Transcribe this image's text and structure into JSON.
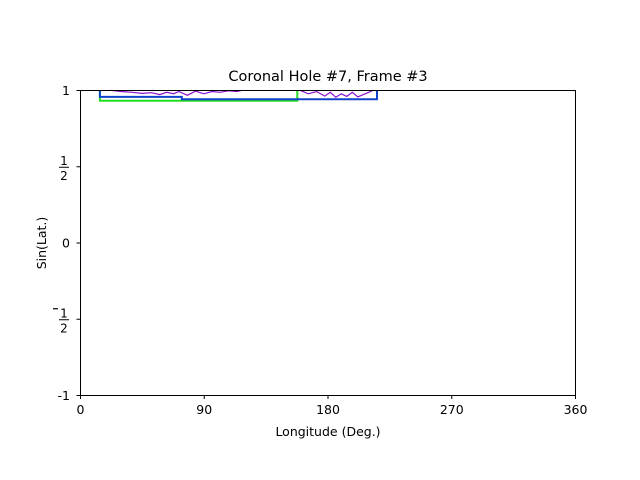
{
  "chart_data": {
    "type": "line",
    "title": "Coronal Hole #7, Frame #3",
    "xlabel": "Longitude (Deg.)",
    "ylabel": "Sin(Lat.)",
    "xlim": [
      0,
      360
    ],
    "ylim": [
      -1,
      1
    ],
    "grid": false,
    "x_ticks": [
      {
        "value": 0,
        "label": "0"
      },
      {
        "value": 90,
        "label": "90"
      },
      {
        "value": 180,
        "label": "180"
      },
      {
        "value": 270,
        "label": "270"
      },
      {
        "value": 360,
        "label": "360"
      }
    ],
    "y_ticks": [
      {
        "value": -1,
        "label": "-1"
      },
      {
        "value": -0.5,
        "label": "",
        "num": "1",
        "den": "2",
        "minus": true
      },
      {
        "value": 0,
        "label": "0"
      },
      {
        "value": 0.5,
        "label": "",
        "num": "1",
        "den": "2",
        "minus": false
      },
      {
        "value": 1,
        "label": "1"
      }
    ],
    "series": [
      {
        "color": "#22dd22",
        "kind": "bbox",
        "x": [
          14.5,
          14.5,
          158,
          158
        ],
        "y": [
          1.0,
          0.93,
          0.93,
          1.0
        ]
      },
      {
        "color": "#1144cc",
        "kind": "bbox",
        "x": [
          14.5,
          14.5,
          74,
          74,
          216,
          216
        ],
        "y": [
          1.0,
          0.955,
          0.955,
          0.94,
          0.94,
          1.0
        ]
      },
      {
        "color": "#8811cc",
        "kind": "contour",
        "x": [
          22,
          30,
          38,
          45,
          52,
          58,
          63,
          68,
          72,
          78,
          84,
          90,
          96,
          102,
          108,
          114,
          118
        ],
        "y": [
          0.998,
          0.99,
          0.985,
          0.978,
          0.982,
          0.97,
          0.985,
          0.976,
          0.99,
          0.965,
          0.992,
          0.975,
          0.99,
          0.985,
          0.995,
          0.99,
          0.998
        ]
      },
      {
        "color": "#8811cc",
        "kind": "contour",
        "x": [
          160,
          166,
          172,
          178,
          182,
          186,
          190,
          194,
          198,
          202,
          206,
          210,
          213
        ],
        "y": [
          0.998,
          0.975,
          0.99,
          0.96,
          0.985,
          0.952,
          0.975,
          0.958,
          0.985,
          0.955,
          0.97,
          0.985,
          0.998
        ]
      }
    ]
  }
}
